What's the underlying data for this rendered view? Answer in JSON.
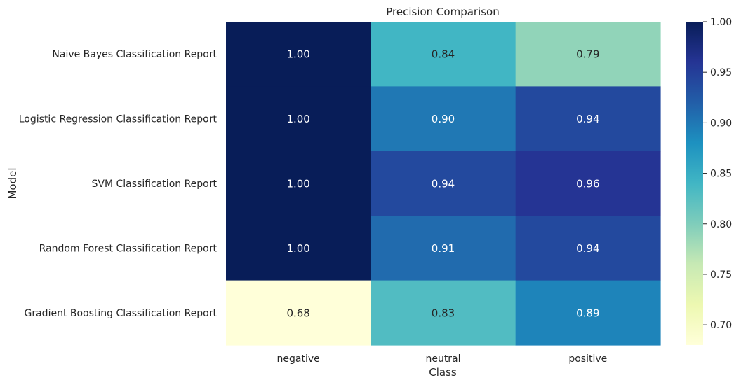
{
  "chart_data": {
    "type": "heatmap",
    "title": "Precision Comparison",
    "xlabel": "Class",
    "ylabel": "Model",
    "x_categories": [
      "negative",
      "neutral",
      "positive"
    ],
    "y_categories": [
      "Naive Bayes Classification Report",
      "Logistic Regression Classification Report",
      "SVM Classification Report",
      "Random Forest Classification Report",
      "Gradient Boosting Classification Report"
    ],
    "values": [
      [
        1.0,
        0.84,
        0.79
      ],
      [
        1.0,
        0.9,
        0.94
      ],
      [
        1.0,
        0.94,
        0.96
      ],
      [
        1.0,
        0.91,
        0.94
      ],
      [
        0.68,
        0.83,
        0.89
      ]
    ],
    "value_labels": [
      [
        "1.00",
        "0.84",
        "0.79"
      ],
      [
        "1.00",
        "0.90",
        "0.94"
      ],
      [
        "1.00",
        "0.94",
        "0.96"
      ],
      [
        "1.00",
        "0.91",
        "0.94"
      ],
      [
        "0.68",
        "0.83",
        "0.89"
      ]
    ],
    "colormap": "YlGnBu",
    "colormap_stops": [
      "#ffffd9",
      "#edf8b1",
      "#c7e9b4",
      "#7fcdbb",
      "#41b6c4",
      "#1d91c0",
      "#225ea8",
      "#253494",
      "#081d58"
    ],
    "colorbar": {
      "range": [
        0.68,
        1.0
      ],
      "ticks": [
        0.7,
        0.75,
        0.8,
        0.85,
        0.9,
        0.95,
        1.0
      ],
      "tick_labels": [
        "0.70",
        "0.75",
        "0.80",
        "0.85",
        "0.90",
        "0.95",
        "1.00"
      ]
    },
    "annotation_color_dark": "#262626",
    "annotation_color_light": "#ffffff",
    "grid": false,
    "legend": "colorbar-right"
  }
}
